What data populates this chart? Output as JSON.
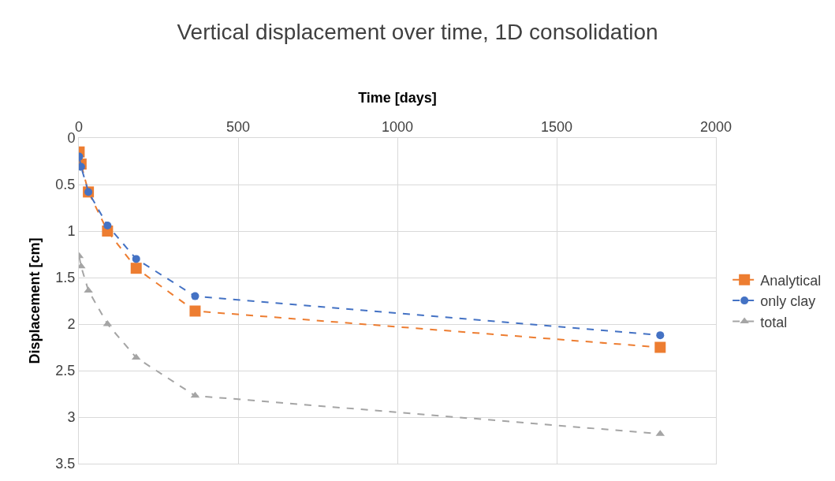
{
  "chart_data": {
    "type": "line",
    "title": "Vertical displacement over time, 1D consolidation",
    "xlabel": "Time [days]",
    "ylabel": "Displacement [cm]",
    "x": [
      1,
      7,
      30,
      90,
      180,
      365,
      1825
    ],
    "series": [
      {
        "name": "Analytical",
        "color": "#ed7d31",
        "marker": "square",
        "values": [
          0.15,
          0.28,
          0.58,
          1.0,
          1.4,
          1.86,
          2.25
        ]
      },
      {
        "name": "only clay",
        "color": "#4472c4",
        "marker": "circle",
        "values": [
          0.2,
          0.31,
          0.58,
          0.94,
          1.3,
          1.7,
          2.12
        ]
      },
      {
        "name": "total",
        "color": "#a5a5a5",
        "marker": "triangle",
        "values": [
          1.27,
          1.38,
          1.64,
          2.0,
          2.36,
          2.77,
          3.18
        ]
      }
    ],
    "xlim": [
      0,
      2000
    ],
    "xticks": [
      0,
      500,
      1000,
      1500,
      2000
    ],
    "ylim": [
      3.5,
      0
    ],
    "yticks": [
      0,
      0.5,
      1,
      1.5,
      2,
      2.5,
      3,
      3.5
    ],
    "grid": true,
    "legend": "right",
    "line_style": "dashed"
  }
}
